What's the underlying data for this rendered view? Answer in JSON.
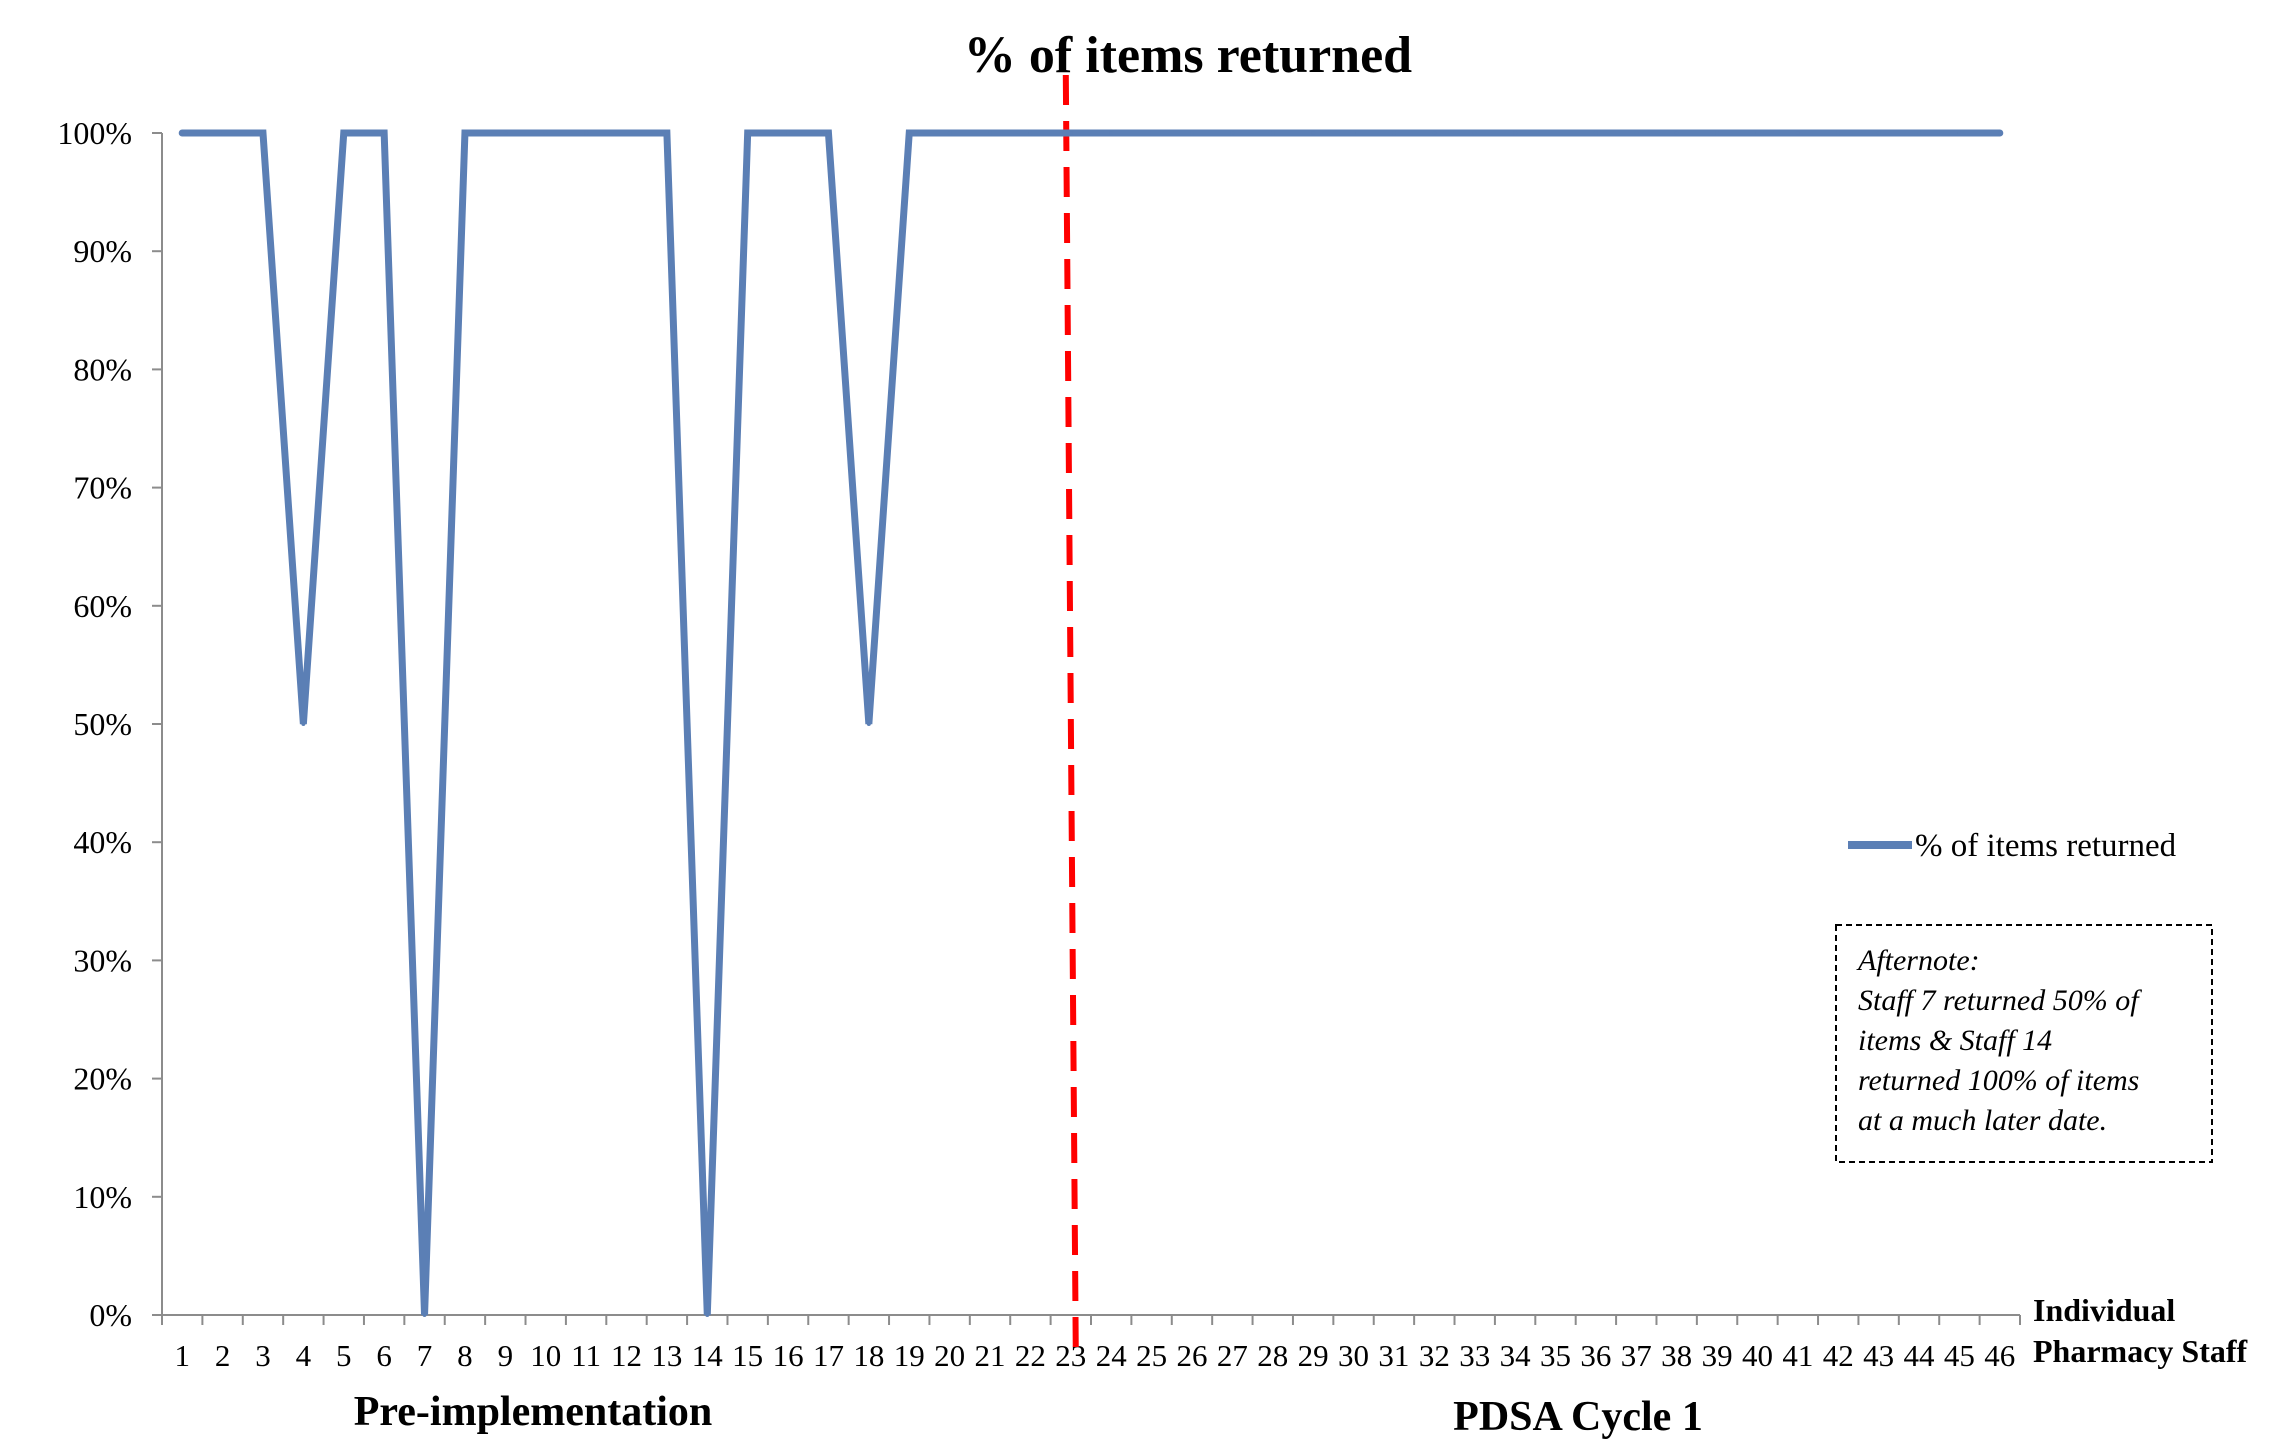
{
  "chart_data": {
    "type": "line",
    "title": "% of items returned",
    "xlabel": [
      "Individual",
      "Pharmacy Staff"
    ],
    "ylabel": "",
    "ylim": [
      0,
      100
    ],
    "yticks": [
      "0%",
      "10%",
      "20%",
      "30%",
      "40%",
      "50%",
      "60%",
      "70%",
      "80%",
      "90%",
      "100%"
    ],
    "categories": [
      "1",
      "2",
      "3",
      "4",
      "5",
      "6",
      "7",
      "8",
      "9",
      "10",
      "11",
      "12",
      "13",
      "14",
      "15",
      "16",
      "17",
      "18",
      "19",
      "20",
      "21",
      "22",
      "23",
      "24",
      "25",
      "26",
      "27",
      "28",
      "29",
      "30",
      "31",
      "32",
      "33",
      "34",
      "35",
      "36",
      "37",
      "38",
      "39",
      "40",
      "41",
      "42",
      "43",
      "44",
      "45",
      "46"
    ],
    "series": [
      {
        "name": "% of items returned",
        "color": "#5b7fb5",
        "values": [
          100,
          100,
          100,
          50,
          100,
          100,
          0,
          100,
          100,
          100,
          100,
          100,
          100,
          0,
          100,
          100,
          100,
          50,
          100,
          100,
          100,
          100,
          100,
          100,
          100,
          100,
          100,
          100,
          100,
          100,
          100,
          100,
          100,
          100,
          100,
          100,
          100,
          100,
          100,
          100,
          100,
          100,
          100,
          100,
          100,
          100
        ]
      }
    ],
    "divider": {
      "after_category": "23",
      "color": "#ff0000",
      "style": "dashed"
    },
    "phases": [
      "Pre-implementation",
      "PDSA Cycle 1"
    ],
    "legend": {
      "placement": "right"
    },
    "annotation": {
      "lines": [
        "Afternote:",
        "Staff 7 returned 50% of",
        "items & Staff 14",
        "returned 100% of items",
        "at a much  later date."
      ]
    },
    "grid": false
  }
}
